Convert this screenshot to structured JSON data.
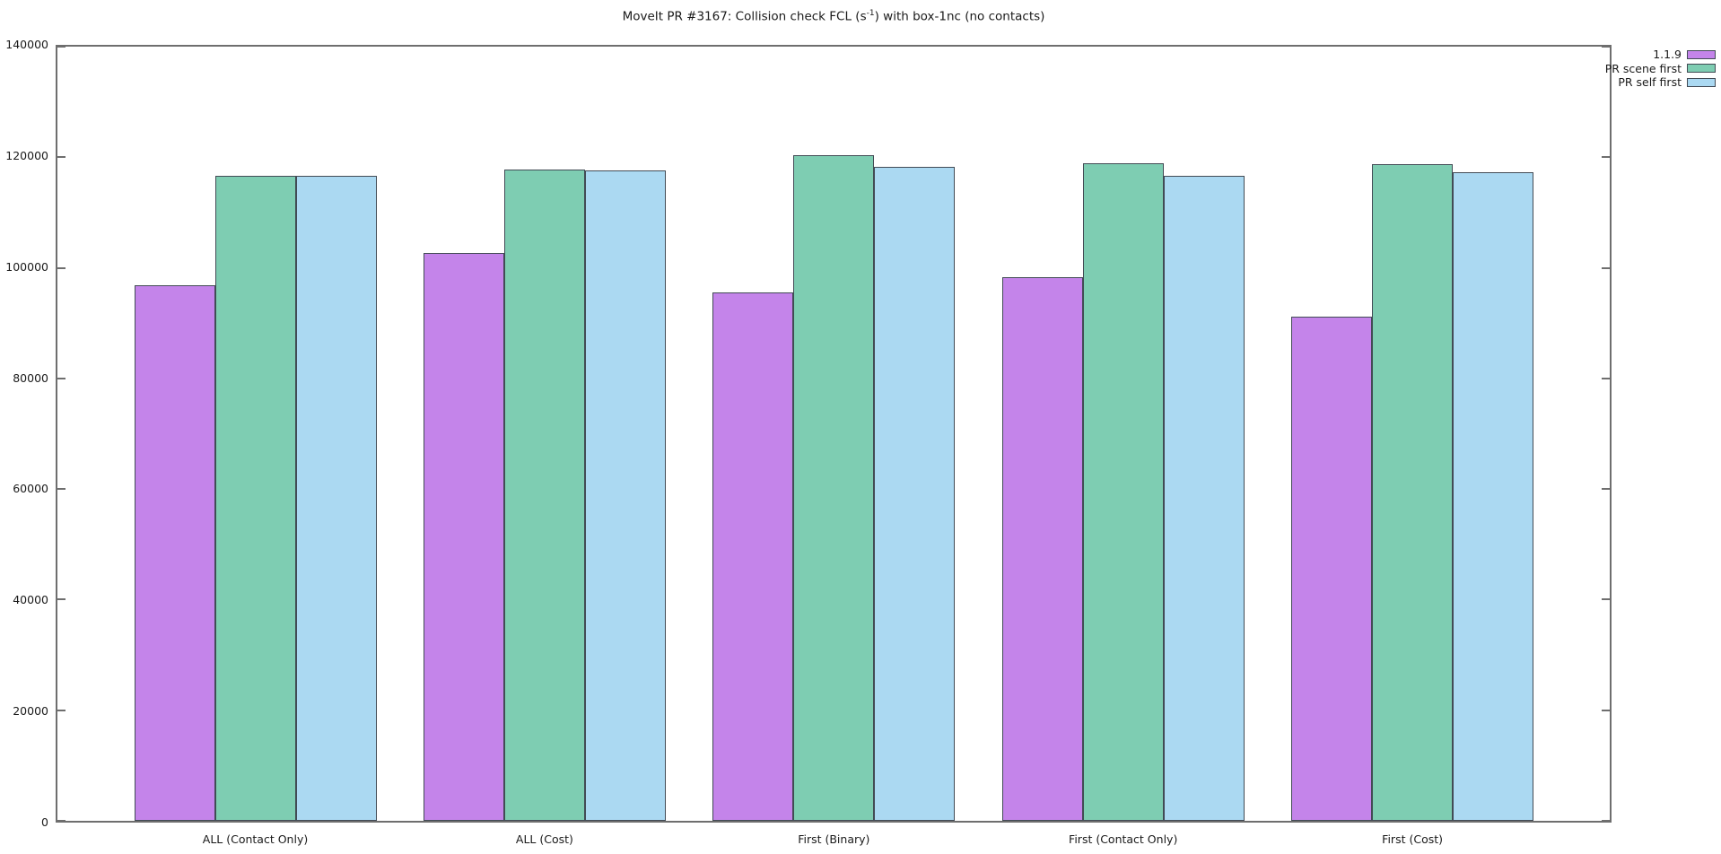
{
  "title": {
    "prefix": "MoveIt PR #3167: Collision check FCL (s",
    "superscript": "-1",
    "suffix": ") with box-1nc (no contacts)"
  },
  "colors": {
    "bar_border": "#424b55",
    "axis": "#6e6e6e",
    "text": "#1a1a1a",
    "background": "#ffffff"
  },
  "chart_data": {
    "type": "bar",
    "title": "MoveIt PR #3167: Collision check FCL (s^-1) with box-1nc (no contacts)",
    "xlabel": "",
    "ylabel": "",
    "ylim": [
      0,
      140000
    ],
    "yticks": [
      0,
      20000,
      40000,
      60000,
      80000,
      100000,
      120000,
      140000
    ],
    "grid": false,
    "legend_position": "outside-top-right",
    "categories": [
      "ALL (Contact Only)",
      "ALL (Cost)",
      "First (Binary)",
      "First (Contact Only)",
      "First (Cost)"
    ],
    "series": [
      {
        "name": "1.1.9",
        "color": "#c484ea",
        "values": [
          96900,
          102700,
          95600,
          98300,
          91200
        ]
      },
      {
        "name": "PR scene first",
        "color": "#7ecdb2",
        "values": [
          116700,
          117800,
          120400,
          118900,
          118700
        ]
      },
      {
        "name": "PR self first",
        "color": "#abd9f2",
        "values": [
          116600,
          117600,
          118300,
          116600,
          117300
        ]
      }
    ]
  }
}
